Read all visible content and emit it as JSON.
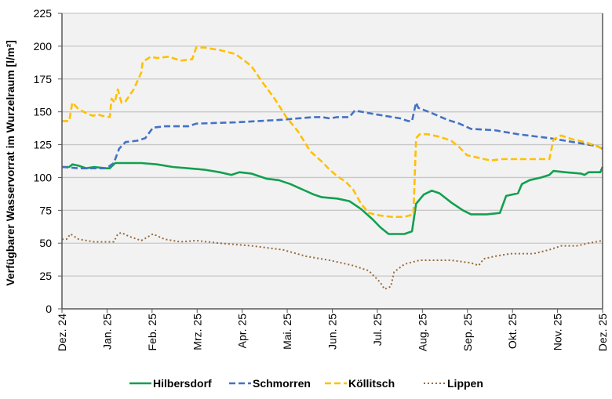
{
  "chart_data": {
    "type": "line",
    "title": "",
    "xlabel": "",
    "ylabel": "Verfügbarer Wasservorrat im Wurzelraum [l/m²]",
    "ylim": [
      0,
      225
    ],
    "yticks": [
      0,
      25,
      50,
      75,
      100,
      125,
      150,
      175,
      200,
      225
    ],
    "xlim_months": [
      0,
      12
    ],
    "xtick_labels": [
      "Dez. 24",
      "Jan. 25",
      "Feb. 25",
      "Mrz. 25",
      "Apr. 25",
      "Mai. 25",
      "Jun. 25",
      "Jul. 25",
      "Aug. 25",
      "Sep. 25",
      "Okt. 25",
      "Nov. 25",
      "Dez. 25"
    ],
    "grid": true,
    "legend_position": "bottom",
    "x_unit": "months since start of Dez. 24",
    "series": [
      {
        "name": "Hilbersdorf",
        "color": "#12a04f",
        "style": "solid",
        "points": [
          [
            0,
            108
          ],
          [
            0.16,
            108
          ],
          [
            0.23,
            110
          ],
          [
            0.37,
            109
          ],
          [
            0.54,
            107
          ],
          [
            0.71,
            108
          ],
          [
            0.98,
            107
          ],
          [
            1.06,
            107
          ],
          [
            1.18,
            111
          ],
          [
            1.41,
            111
          ],
          [
            1.76,
            111
          ],
          [
            2.11,
            110
          ],
          [
            2.46,
            108
          ],
          [
            2.8,
            107
          ],
          [
            3.15,
            106
          ],
          [
            3.5,
            104
          ],
          [
            3.76,
            102
          ],
          [
            3.94,
            104
          ],
          [
            4.2,
            103
          ],
          [
            4.55,
            99
          ],
          [
            4.81,
            98
          ],
          [
            5.07,
            95
          ],
          [
            5.33,
            91
          ],
          [
            5.59,
            87
          ],
          [
            5.77,
            85
          ],
          [
            6.11,
            84
          ],
          [
            6.38,
            82
          ],
          [
            6.64,
            76
          ],
          [
            6.9,
            68
          ],
          [
            7.07,
            62
          ],
          [
            7.25,
            57
          ],
          [
            7.6,
            57
          ],
          [
            7.77,
            59
          ],
          [
            7.86,
            80
          ],
          [
            8.03,
            87
          ],
          [
            8.21,
            90
          ],
          [
            8.38,
            88
          ],
          [
            8.64,
            81
          ],
          [
            8.9,
            75
          ],
          [
            9.08,
            72
          ],
          [
            9.43,
            72
          ],
          [
            9.72,
            73
          ],
          [
            9.86,
            86
          ],
          [
            10.12,
            88
          ],
          [
            10.21,
            95
          ],
          [
            10.38,
            98
          ],
          [
            10.64,
            100
          ],
          [
            10.82,
            102
          ],
          [
            10.91,
            105
          ],
          [
            11.17,
            104
          ],
          [
            11.52,
            103
          ],
          [
            11.6,
            102
          ],
          [
            11.69,
            104
          ],
          [
            11.95,
            104
          ],
          [
            12,
            108
          ]
        ]
      },
      {
        "name": "Schmorren",
        "color": "#4472c4",
        "style": "dashed",
        "points": [
          [
            0,
            108
          ],
          [
            0.37,
            107
          ],
          [
            0.71,
            107
          ],
          [
            0.98,
            107
          ],
          [
            1.15,
            111
          ],
          [
            1.27,
            122
          ],
          [
            1.41,
            127
          ],
          [
            1.67,
            128
          ],
          [
            1.85,
            130
          ],
          [
            2.02,
            138
          ],
          [
            2.28,
            139
          ],
          [
            2.8,
            139
          ],
          [
            2.98,
            141
          ],
          [
            3.85,
            142
          ],
          [
            4.37,
            143
          ],
          [
            4.9,
            144
          ],
          [
            5.24,
            145
          ],
          [
            5.59,
            146
          ],
          [
            5.77,
            146
          ],
          [
            5.94,
            145
          ],
          [
            6.11,
            146
          ],
          [
            6.38,
            146
          ],
          [
            6.5,
            151
          ],
          [
            6.81,
            149
          ],
          [
            7.16,
            147
          ],
          [
            7.51,
            145
          ],
          [
            7.68,
            143
          ],
          [
            7.77,
            143
          ],
          [
            7.82,
            151
          ],
          [
            7.86,
            157
          ],
          [
            7.91,
            153
          ],
          [
            8.21,
            149
          ],
          [
            8.55,
            144
          ],
          [
            8.82,
            141
          ],
          [
            9.08,
            137
          ],
          [
            9.6,
            136
          ],
          [
            9.77,
            135
          ],
          [
            10.12,
            133
          ],
          [
            10.82,
            130
          ],
          [
            11.17,
            128
          ],
          [
            11.52,
            126
          ],
          [
            11.86,
            124
          ],
          [
            12,
            122
          ]
        ]
      },
      {
        "name": "Köllitsch",
        "color": "#ffc000",
        "style": "dashed",
        "points": [
          [
            0,
            143
          ],
          [
            0.16,
            143
          ],
          [
            0.23,
            157
          ],
          [
            0.37,
            152
          ],
          [
            0.54,
            149
          ],
          [
            0.68,
            147
          ],
          [
            0.8,
            148
          ],
          [
            0.89,
            147
          ],
          [
            1.06,
            146
          ],
          [
            1.1,
            160
          ],
          [
            1.17,
            157
          ],
          [
            1.24,
            167
          ],
          [
            1.32,
            157
          ],
          [
            1.41,
            158
          ],
          [
            1.59,
            167
          ],
          [
            1.76,
            180
          ],
          [
            1.79,
            188
          ],
          [
            1.97,
            192
          ],
          [
            2.11,
            191
          ],
          [
            2.37,
            192
          ],
          [
            2.63,
            189
          ],
          [
            2.89,
            190
          ],
          [
            2.98,
            199
          ],
          [
            3.15,
            199
          ],
          [
            3.5,
            197
          ],
          [
            3.85,
            194
          ],
          [
            4.2,
            185
          ],
          [
            4.46,
            172
          ],
          [
            4.72,
            160
          ],
          [
            4.98,
            146
          ],
          [
            5.24,
            135
          ],
          [
            5.51,
            120
          ],
          [
            5.77,
            112
          ],
          [
            5.94,
            106
          ],
          [
            6.11,
            101
          ],
          [
            6.29,
            97
          ],
          [
            6.46,
            91
          ],
          [
            6.64,
            80
          ],
          [
            6.81,
            73
          ],
          [
            7.07,
            71
          ],
          [
            7.33,
            70
          ],
          [
            7.6,
            70
          ],
          [
            7.8,
            72
          ],
          [
            7.86,
            130
          ],
          [
            7.94,
            133
          ],
          [
            8.12,
            133
          ],
          [
            8.38,
            131
          ],
          [
            8.64,
            128
          ],
          [
            8.82,
            123
          ],
          [
            8.99,
            117
          ],
          [
            9.25,
            115
          ],
          [
            9.51,
            113
          ],
          [
            9.77,
            114
          ],
          [
            10.03,
            114
          ],
          [
            10.3,
            114
          ],
          [
            10.64,
            114
          ],
          [
            10.82,
            114
          ],
          [
            10.91,
            129
          ],
          [
            11.08,
            132
          ],
          [
            11.34,
            129
          ],
          [
            11.6,
            127
          ],
          [
            11.78,
            125
          ],
          [
            12,
            122
          ]
        ]
      },
      {
        "name": "Lippen",
        "color": "#9a6a3a",
        "style": "dotted",
        "points": [
          [
            0,
            53
          ],
          [
            0.1,
            53
          ],
          [
            0.19,
            57
          ],
          [
            0.37,
            53
          ],
          [
            0.71,
            51
          ],
          [
            1.15,
            51
          ],
          [
            1.24,
            57
          ],
          [
            1.32,
            58
          ],
          [
            1.5,
            55
          ],
          [
            1.76,
            52
          ],
          [
            2.02,
            57
          ],
          [
            2.28,
            53
          ],
          [
            2.63,
            51
          ],
          [
            2.98,
            52
          ],
          [
            3.5,
            50
          ],
          [
            4.2,
            48
          ],
          [
            4.9,
            45
          ],
          [
            5.42,
            40
          ],
          [
            5.94,
            37
          ],
          [
            6.46,
            33
          ],
          [
            6.81,
            29
          ],
          [
            7.07,
            20
          ],
          [
            7.16,
            15
          ],
          [
            7.3,
            17
          ],
          [
            7.37,
            28
          ],
          [
            7.6,
            34
          ],
          [
            7.94,
            37
          ],
          [
            8.64,
            37
          ],
          [
            9.08,
            35
          ],
          [
            9.25,
            33
          ],
          [
            9.36,
            38
          ],
          [
            9.6,
            40
          ],
          [
            9.95,
            42
          ],
          [
            10.47,
            42
          ],
          [
            10.82,
            45
          ],
          [
            11.08,
            48
          ],
          [
            11.43,
            48
          ],
          [
            11.69,
            50
          ],
          [
            12,
            52
          ]
        ]
      }
    ]
  }
}
